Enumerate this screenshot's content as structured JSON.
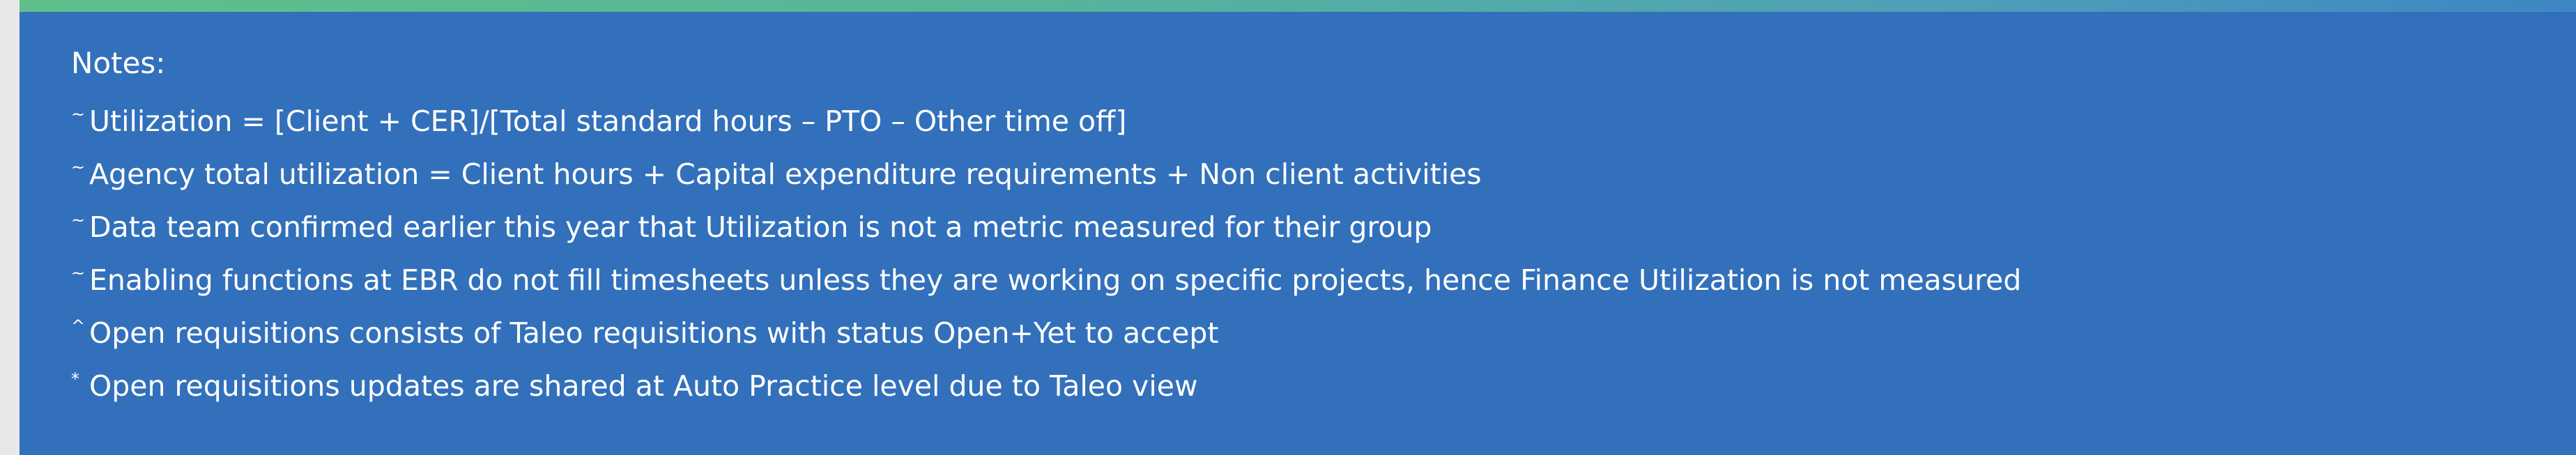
{
  "notes": {
    "title": "Notes:",
    "items": [
      {
        "marker": "~",
        "text": "Utilization = [Client + CER]/[Total standard hours – PTO – Other time off]"
      },
      {
        "marker": "~",
        "text": "Agency total utilization = Client hours + Capital expenditure requirements + Non client activities"
      },
      {
        "marker": "~",
        "text": "Data team confirmed earlier this year that Utilization is not a metric measured for their group"
      },
      {
        "marker": "~",
        "text": "Enabling functions at EBR do not fill timesheets unless they are working on specific projects, hence Finance Utilization is not measured"
      },
      {
        "marker": "^",
        "text": "Open requisitions consists of Taleo requisitions with status Open+Yet to accept"
      },
      {
        "marker": "*",
        "text": "Open requisitions updates are shared at Auto Practice level due to Taleo view"
      }
    ]
  },
  "colors": {
    "panel_background": "#3270bb",
    "page_background": "#e8e8e8",
    "accent_bar_start": "#5fbf8a",
    "accent_bar_end": "#3f86c4",
    "text": "#ffffff"
  }
}
